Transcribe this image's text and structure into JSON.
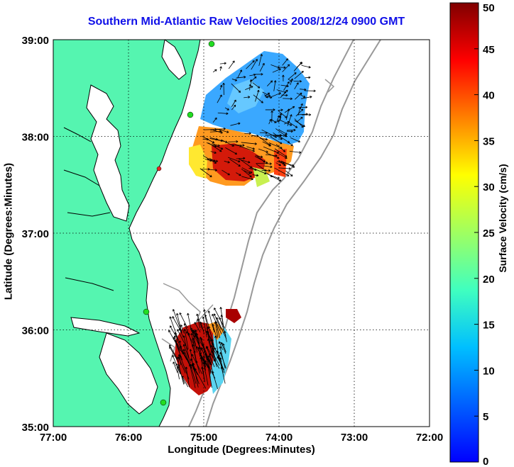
{
  "map": {
    "title": "Southern Mid-Atlantic Raw Velocities 2008/12/24 0900 GMT",
    "xlabel": "Longitude (Degrees:Minutes)",
    "ylabel": "Latitude (Degrees:Minutes)",
    "x_ticks": [
      "77:00",
      "76:00",
      "75:00",
      "74:00",
      "73:00",
      "72:00"
    ],
    "y_ticks": [
      "39:00",
      "38:00",
      "37:00",
      "36:00",
      "35:00"
    ],
    "land_color": "#55f5b0",
    "arrow_color": "#000000"
  },
  "colorbar": {
    "label": "Surface Velocity (cm/s)",
    "ticks": [
      "50",
      "45",
      "40",
      "35",
      "30",
      "25",
      "20",
      "15",
      "10",
      "5",
      "0"
    ],
    "range": [
      0,
      50
    ],
    "colormap": "jet"
  }
}
